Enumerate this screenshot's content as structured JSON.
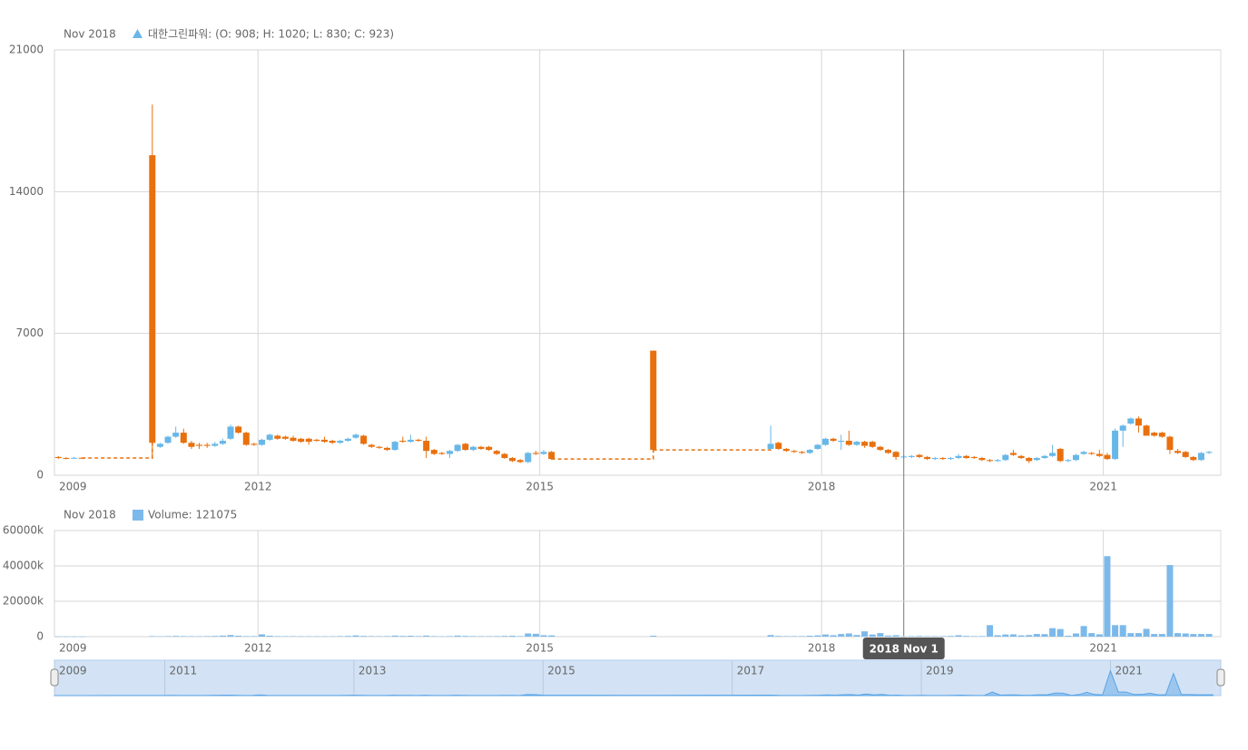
{
  "chart_data": [
    {
      "type": "candlestick",
      "legend_date": "Nov 2018",
      "legend_text": "대한그린파워: (O: 908; H: 1020; L: 830; C: 923)",
      "up_color": "#67b7e8",
      "down_color": "#e8700e",
      "xlim": [
        "2009-11",
        "2022-04"
      ],
      "xticks": [
        {
          "value": "2009-11",
          "label": "2009"
        },
        "2012",
        "2015",
        "2018",
        "2021"
      ],
      "ylim": [
        0,
        21000
      ],
      "yticks": [
        0,
        7000,
        14000,
        21000
      ],
      "grid": true,
      "crosshair": {
        "x": "2018-11",
        "label": "2018 Nov 1"
      },
      "x": [
        "2009-11",
        "2009-12",
        "2010-01",
        "2010-02",
        "2010-11",
        "2010-12",
        "2011-01",
        "2011-02",
        "2011-03",
        "2011-04",
        "2011-05",
        "2011-06",
        "2011-07",
        "2011-08",
        "2011-09",
        "2011-10",
        "2011-11",
        "2011-12",
        "2012-01",
        "2012-02",
        "2012-03",
        "2012-04",
        "2012-05",
        "2012-06",
        "2012-07",
        "2012-08",
        "2012-09",
        "2012-10",
        "2012-11",
        "2012-12",
        "2013-01",
        "2013-02",
        "2013-03",
        "2013-04",
        "2013-05",
        "2013-06",
        "2013-07",
        "2013-08",
        "2013-09",
        "2013-10",
        "2013-11",
        "2013-12",
        "2014-01",
        "2014-02",
        "2014-03",
        "2014-04",
        "2014-05",
        "2014-06",
        "2014-07",
        "2014-08",
        "2014-09",
        "2014-10",
        "2014-11",
        "2014-12",
        "2015-01",
        "2015-02",
        "2016-03",
        "2017-06",
        "2017-07",
        "2017-08",
        "2017-09",
        "2017-10",
        "2017-11",
        "2017-12",
        "2018-01",
        "2018-02",
        "2018-03",
        "2018-04",
        "2018-05",
        "2018-06",
        "2018-07",
        "2018-08",
        "2018-09",
        "2018-10",
        "2018-11",
        "2018-12",
        "2019-01",
        "2019-02",
        "2019-03",
        "2019-04",
        "2019-05",
        "2019-06",
        "2019-07",
        "2019-08",
        "2019-09",
        "2019-10",
        "2019-11",
        "2019-12",
        "2020-01",
        "2020-02",
        "2020-03",
        "2020-04",
        "2020-05",
        "2020-06",
        "2020-07",
        "2020-08",
        "2020-09",
        "2020-10",
        "2020-11",
        "2020-12",
        "2021-01",
        "2021-02",
        "2021-03",
        "2021-04",
        "2021-05",
        "2021-06",
        "2021-07",
        "2021-08",
        "2021-09",
        "2021-10",
        "2021-11",
        "2021-12",
        "2022-01",
        "2022-02"
      ],
      "open": [
        900,
        850,
        830,
        860,
        15800,
        1400,
        1600,
        1900,
        2100,
        1600,
        1500,
        1500,
        1450,
        1550,
        1800,
        2400,
        2100,
        1550,
        1500,
        1750,
        1950,
        1900,
        1850,
        1800,
        1800,
        1750,
        1750,
        1700,
        1600,
        1700,
        1850,
        1950,
        1500,
        1400,
        1350,
        1250,
        1700,
        1650,
        1750,
        1700,
        1250,
        1100,
        1050,
        1200,
        1550,
        1250,
        1400,
        1400,
        1200,
        1050,
        850,
        750,
        650,
        1100,
        1050,
        1150,
        6150,
        1300,
        1600,
        1300,
        1200,
        1150,
        1100,
        1300,
        1500,
        1800,
        1650,
        1700,
        1500,
        1650,
        1650,
        1400,
        1250,
        1150,
        908,
        900,
        1000,
        900,
        800,
        850,
        800,
        850,
        950,
        900,
        850,
        750,
        700,
        750,
        1100,
        950,
        850,
        750,
        850,
        950,
        1300,
        700,
        750,
        1050,
        1100,
        1050,
        1000,
        800,
        2200,
        2550,
        2800,
        2450,
        2100,
        2100,
        1900,
        1200,
        1150,
        900,
        750,
        1100
      ],
      "high": [
        950,
        900,
        900,
        880,
        18300,
        1600,
        1950,
        2400,
        2300,
        1700,
        1600,
        1600,
        1650,
        1800,
        2500,
        2450,
        2150,
        1600,
        1800,
        2050,
        2000,
        1950,
        1950,
        1850,
        1850,
        1800,
        1900,
        1750,
        1750,
        1850,
        2050,
        2000,
        1550,
        1450,
        1400,
        1700,
        1900,
        2000,
        1800,
        1900,
        1300,
        1150,
        1250,
        1550,
        1600,
        1450,
        1450,
        1450,
        1250,
        1100,
        900,
        800,
        1150,
        1200,
        1250,
        1200,
        6150,
        2450,
        1650,
        1350,
        1250,
        1200,
        1300,
        1550,
        1850,
        1850,
        2000,
        2200,
        1700,
        1700,
        1700,
        1450,
        1300,
        1200,
        1020,
        1000,
        1050,
        950,
        900,
        900,
        900,
        1050,
        1000,
        950,
        900,
        800,
        800,
        1050,
        1250,
        1000,
        900,
        900,
        1000,
        1500,
        1350,
        800,
        1050,
        1200,
        1150,
        1250,
        1100,
        2300,
        2500,
        2850,
        2900,
        2500,
        2150,
        2150,
        1950,
        1300,
        1200,
        950,
        1150,
        1200
      ],
      "low": [
        800,
        780,
        800,
        820,
        800,
        1350,
        1550,
        1850,
        1550,
        1300,
        1300,
        1350,
        1400,
        1500,
        1750,
        2050,
        1450,
        1450,
        1450,
        1700,
        1750,
        1750,
        1650,
        1600,
        1500,
        1650,
        1600,
        1550,
        1550,
        1650,
        1800,
        1500,
        1350,
        1300,
        1200,
        1200,
        1600,
        1600,
        1650,
        850,
        1000,
        1000,
        850,
        1150,
        1200,
        1200,
        1250,
        1200,
        1000,
        800,
        650,
        600,
        600,
        1000,
        1000,
        750,
        1200,
        1250,
        1250,
        1150,
        1100,
        1050,
        1050,
        1250,
        1450,
        1650,
        1250,
        1450,
        1450,
        1350,
        1350,
        1200,
        1050,
        750,
        830,
        850,
        850,
        750,
        750,
        750,
        750,
        800,
        800,
        800,
        700,
        650,
        650,
        700,
        950,
        800,
        600,
        700,
        800,
        900,
        650,
        650,
        700,
        1000,
        1000,
        900,
        750,
        750,
        1400,
        2500,
        2100,
        1950,
        1900,
        1850,
        1050,
        1050,
        850,
        700,
        700,
        1050
      ],
      "close": [
        850,
        820,
        860,
        850,
        1600,
        1550,
        1900,
        2100,
        1600,
        1400,
        1450,
        1450,
        1550,
        1700,
        2400,
        2100,
        1500,
        1500,
        1750,
        2000,
        1800,
        1800,
        1700,
        1650,
        1650,
        1700,
        1650,
        1600,
        1700,
        1800,
        2000,
        1550,
        1400,
        1350,
        1250,
        1650,
        1650,
        1750,
        1700,
        1200,
        1050,
        1050,
        1200,
        1500,
        1250,
        1400,
        1300,
        1250,
        1050,
        850,
        700,
        650,
        1100,
        1050,
        1150,
        800,
        1250,
        1550,
        1300,
        1200,
        1150,
        1100,
        1250,
        1500,
        1800,
        1700,
        1700,
        1500,
        1650,
        1450,
        1400,
        1250,
        1100,
        900,
        923,
        950,
        900,
        800,
        850,
        800,
        850,
        950,
        850,
        850,
        750,
        700,
        750,
        1000,
        1000,
        850,
        700,
        850,
        950,
        1100,
        700,
        750,
        1000,
        1150,
        1050,
        950,
        800,
        2200,
        2450,
        2800,
        2450,
        1950,
        1950,
        1900,
        1250,
        1100,
        900,
        750,
        1100,
        1150
      ]
    },
    {
      "type": "bar",
      "legend_date": "Nov 2018",
      "legend_text": "Volume: 121075",
      "color": "#7cb9ea",
      "xlim": [
        "2009-11",
        "2022-04"
      ],
      "xticks": [
        {
          "value": "2009-11",
          "label": "2009"
        },
        "2012",
        "2015",
        "2018",
        "2021"
      ],
      "ylim": [
        0,
        60000000
      ],
      "yticks": [
        0,
        {
          "value": 20000000,
          "label": "20000k"
        },
        {
          "value": 40000000,
          "label": "40000k"
        },
        {
          "value": 60000000,
          "label": "60000k"
        }
      ],
      "grid": true,
      "x": [
        "2009-11",
        "2009-12",
        "2010-01",
        "2010-02",
        "2010-11",
        "2010-12",
        "2011-01",
        "2011-02",
        "2011-03",
        "2011-04",
        "2011-05",
        "2011-06",
        "2011-07",
        "2011-08",
        "2011-09",
        "2011-10",
        "2011-11",
        "2011-12",
        "2012-01",
        "2012-02",
        "2012-03",
        "2012-04",
        "2012-05",
        "2012-06",
        "2012-07",
        "2012-08",
        "2012-09",
        "2012-10",
        "2012-11",
        "2012-12",
        "2013-01",
        "2013-02",
        "2013-03",
        "2013-04",
        "2013-05",
        "2013-06",
        "2013-07",
        "2013-08",
        "2013-09",
        "2013-10",
        "2013-11",
        "2013-12",
        "2014-01",
        "2014-02",
        "2014-03",
        "2014-04",
        "2014-05",
        "2014-06",
        "2014-07",
        "2014-08",
        "2014-09",
        "2014-10",
        "2014-11",
        "2014-12",
        "2015-01",
        "2015-02",
        "2016-03",
        "2017-06",
        "2017-07",
        "2017-08",
        "2017-09",
        "2017-10",
        "2017-11",
        "2017-12",
        "2018-01",
        "2018-02",
        "2018-03",
        "2018-04",
        "2018-05",
        "2018-06",
        "2018-07",
        "2018-08",
        "2018-09",
        "2018-10",
        "2018-11",
        "2018-12",
        "2019-01",
        "2019-02",
        "2019-03",
        "2019-04",
        "2019-05",
        "2019-06",
        "2019-07",
        "2019-08",
        "2019-09",
        "2019-10",
        "2019-11",
        "2019-12",
        "2020-01",
        "2020-02",
        "2020-03",
        "2020-04",
        "2020-05",
        "2020-06",
        "2020-07",
        "2020-08",
        "2020-09",
        "2020-10",
        "2020-11",
        "2020-12",
        "2021-01",
        "2021-02",
        "2021-03",
        "2021-04",
        "2021-05",
        "2021-06",
        "2021-07",
        "2021-08",
        "2021-09",
        "2021-10",
        "2021-11",
        "2021-12",
        "2022-01",
        "2022-02"
      ],
      "values": [
        100000,
        80000,
        90000,
        60000,
        300000,
        200000,
        300000,
        400000,
        300000,
        250000,
        200000,
        300000,
        400000,
        600000,
        900000,
        500000,
        300000,
        300000,
        1300000,
        500000,
        300000,
        250000,
        250000,
        200000,
        200000,
        200000,
        200000,
        200000,
        300000,
        400000,
        700000,
        400000,
        300000,
        250000,
        300000,
        600000,
        400000,
        500000,
        300000,
        600000,
        300000,
        200000,
        300000,
        600000,
        400000,
        300000,
        250000,
        250000,
        300000,
        400000,
        500000,
        300000,
        1800000,
        1600000,
        800000,
        700000,
        500000,
        900000,
        400000,
        300000,
        300000,
        300000,
        500000,
        700000,
        1200000,
        800000,
        1500000,
        1800000,
        900000,
        3000000,
        1200000,
        2000000,
        600000,
        800000,
        121075,
        300000,
        400000,
        300000,
        300000,
        300000,
        400000,
        800000,
        400000,
        300000,
        300000,
        6500000,
        800000,
        1200000,
        1300000,
        700000,
        900000,
        1500000,
        1400000,
        4800000,
        4300000,
        500000,
        1800000,
        6000000,
        2000000,
        1300000,
        45500000,
        6500000,
        6500000,
        2000000,
        2000000,
        4400000,
        1500000,
        1500000,
        40500000,
        2000000,
        1800000,
        1500000,
        1500000,
        1500000
      ]
    }
  ],
  "navigator": {
    "xlim": [
      "2009-11",
      "2022-03"
    ],
    "xticks": [
      {
        "value": "2009-11",
        "label": "2009"
      },
      "2011",
      "2013",
      "2015",
      "2017",
      "2019",
      "2021"
    ]
  }
}
